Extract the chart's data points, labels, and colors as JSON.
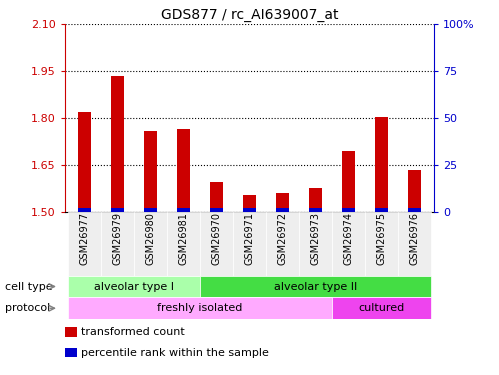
{
  "title": "GDS877 / rc_AI639007_at",
  "samples": [
    "GSM26977",
    "GSM26979",
    "GSM26980",
    "GSM26981",
    "GSM26970",
    "GSM26971",
    "GSM26972",
    "GSM26973",
    "GSM26974",
    "GSM26975",
    "GSM26976"
  ],
  "transformed_count": [
    1.82,
    1.935,
    1.76,
    1.765,
    1.595,
    1.555,
    1.56,
    1.575,
    1.695,
    1.805,
    1.635
  ],
  "percentile_rank": [
    2,
    2,
    2,
    2,
    2,
    2,
    2,
    2,
    2,
    2,
    2
  ],
  "ylim_left": [
    1.5,
    2.1
  ],
  "yticks_left": [
    1.5,
    1.65,
    1.8,
    1.95,
    2.1
  ],
  "ylim_right": [
    0,
    100
  ],
  "yticks_right": [
    0,
    25,
    50,
    75,
    100
  ],
  "yticklabels_right": [
    "0",
    "25",
    "50",
    "75",
    "100%"
  ],
  "bar_color": "#cc0000",
  "percentile_color": "#0000cc",
  "cell_type_groups": [
    {
      "label": "alveolar type I",
      "start": 0,
      "end": 3,
      "color": "#aaffaa"
    },
    {
      "label": "alveolar type II",
      "start": 4,
      "end": 10,
      "color": "#44dd44"
    }
  ],
  "protocol_groups": [
    {
      "label": "freshly isolated",
      "start": 0,
      "end": 7,
      "color": "#ffaaff"
    },
    {
      "label": "cultured",
      "start": 8,
      "end": 10,
      "color": "#ee44ee"
    }
  ],
  "legend_items": [
    {
      "label": "transformed count",
      "color": "#cc0000"
    },
    {
      "label": "percentile rank within the sample",
      "color": "#0000cc"
    }
  ],
  "cell_type_label": "cell type",
  "protocol_label": "protocol",
  "bar_width": 0.4,
  "left_tick_color": "#cc0000",
  "right_tick_color": "#0000cc"
}
